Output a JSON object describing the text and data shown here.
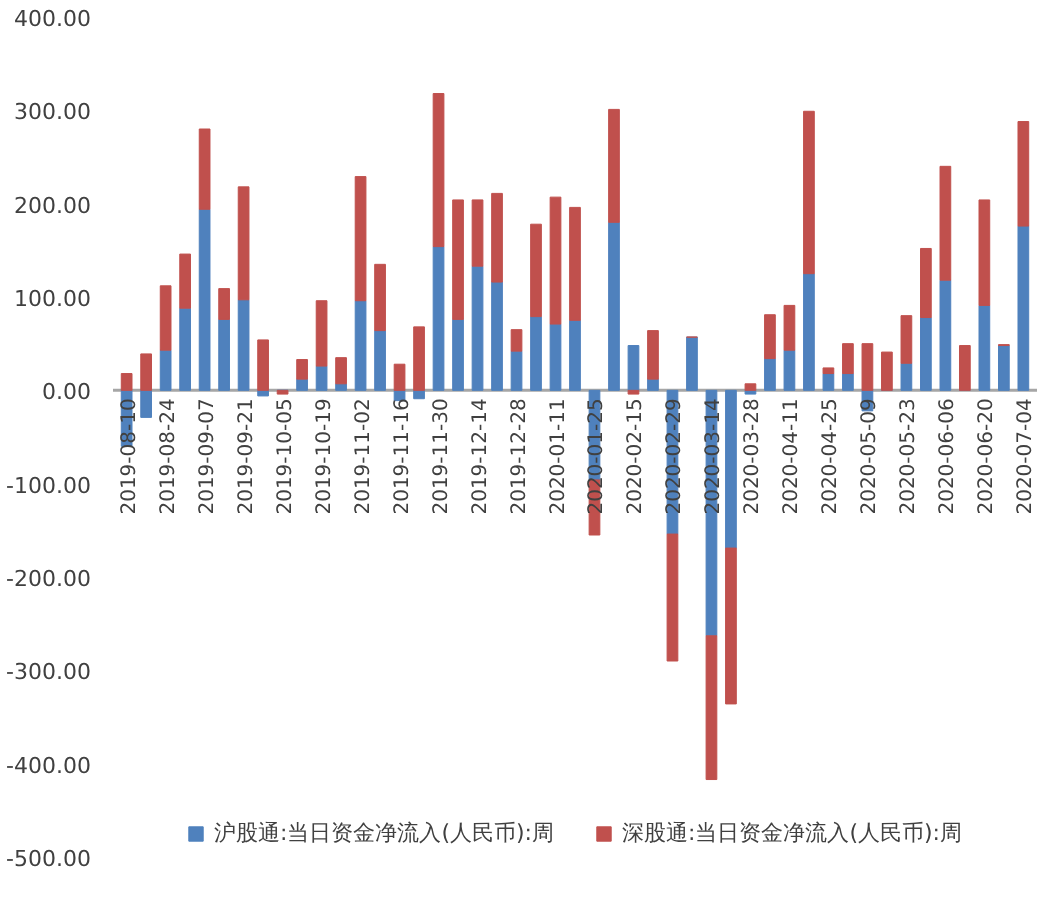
{
  "chart_data": {
    "type": "bar",
    "stacked": true,
    "categories": [
      "2019-08-10",
      null,
      "2019-08-24",
      null,
      "2019-09-07",
      null,
      "2019-09-21",
      null,
      "2019-10-05",
      null,
      "2019-10-19",
      null,
      "2019-11-02",
      null,
      "2019-11-16",
      null,
      "2019-11-30",
      null,
      "2019-12-14",
      null,
      "2019-12-28",
      null,
      "2020-01-11",
      null,
      "2020-01-25",
      null,
      "2020-02-15",
      null,
      "2020-02-29",
      null,
      "2020-03-14",
      null,
      "2020-03-28",
      null,
      "2020-04-11",
      null,
      "2020-04-25",
      null,
      "2020-05-09",
      null,
      "2020-05-23",
      null,
      "2020-06-06",
      null,
      "2020-06-20",
      null,
      "2020-07-04"
    ],
    "series": [
      {
        "name": "沪股通:当日资金净流入(人民币):周",
        "color": "#4f81bd",
        "values": [
          -60,
          -29,
          43,
          88,
          194,
          76,
          97,
          -6,
          0,
          12,
          26,
          7,
          96,
          64,
          -11,
          -9,
          154,
          76,
          133,
          116,
          42,
          79,
          71,
          75,
          -96,
          180,
          48,
          12,
          -154,
          57,
          -263,
          -169,
          -4,
          34,
          43,
          125,
          18,
          18,
          -22,
          0,
          29,
          78,
          118,
          0,
          91,
          48,
          176
        ]
      },
      {
        "name": "深股通:当日资金净流入(人民币):周",
        "color": "#c0504d",
        "values": [
          18,
          39,
          69,
          58,
          86,
          33,
          121,
          54,
          -4,
          21,
          70,
          28,
          133,
          71,
          28,
          68,
          164,
          128,
          71,
          95,
          23,
          99,
          136,
          121,
          -59,
          121,
          -4,
          52,
          -136,
          0,
          -154,
          -167,
          7,
          47,
          48,
          174,
          6,
          32,
          50,
          41,
          51,
          74,
          122,
          48,
          113,
          1,
          112
        ]
      }
    ],
    "ylim": [
      -500,
      400
    ],
    "yticks": [
      {
        "value": -500,
        "label": "-500.00"
      },
      {
        "value": -400,
        "label": "-400.00"
      },
      {
        "value": -300,
        "label": "-300.00"
      },
      {
        "value": -200,
        "label": "-200.00"
      },
      {
        "value": -100,
        "label": "-100.00"
      },
      {
        "value": 0,
        "label": "0.00"
      },
      {
        "value": 100,
        "label": "100.00"
      },
      {
        "value": 200,
        "label": "200.00"
      },
      {
        "value": 300,
        "label": "300.00"
      },
      {
        "value": 400,
        "label": "400.00"
      }
    ],
    "grid": false,
    "legend": "bottom"
  }
}
